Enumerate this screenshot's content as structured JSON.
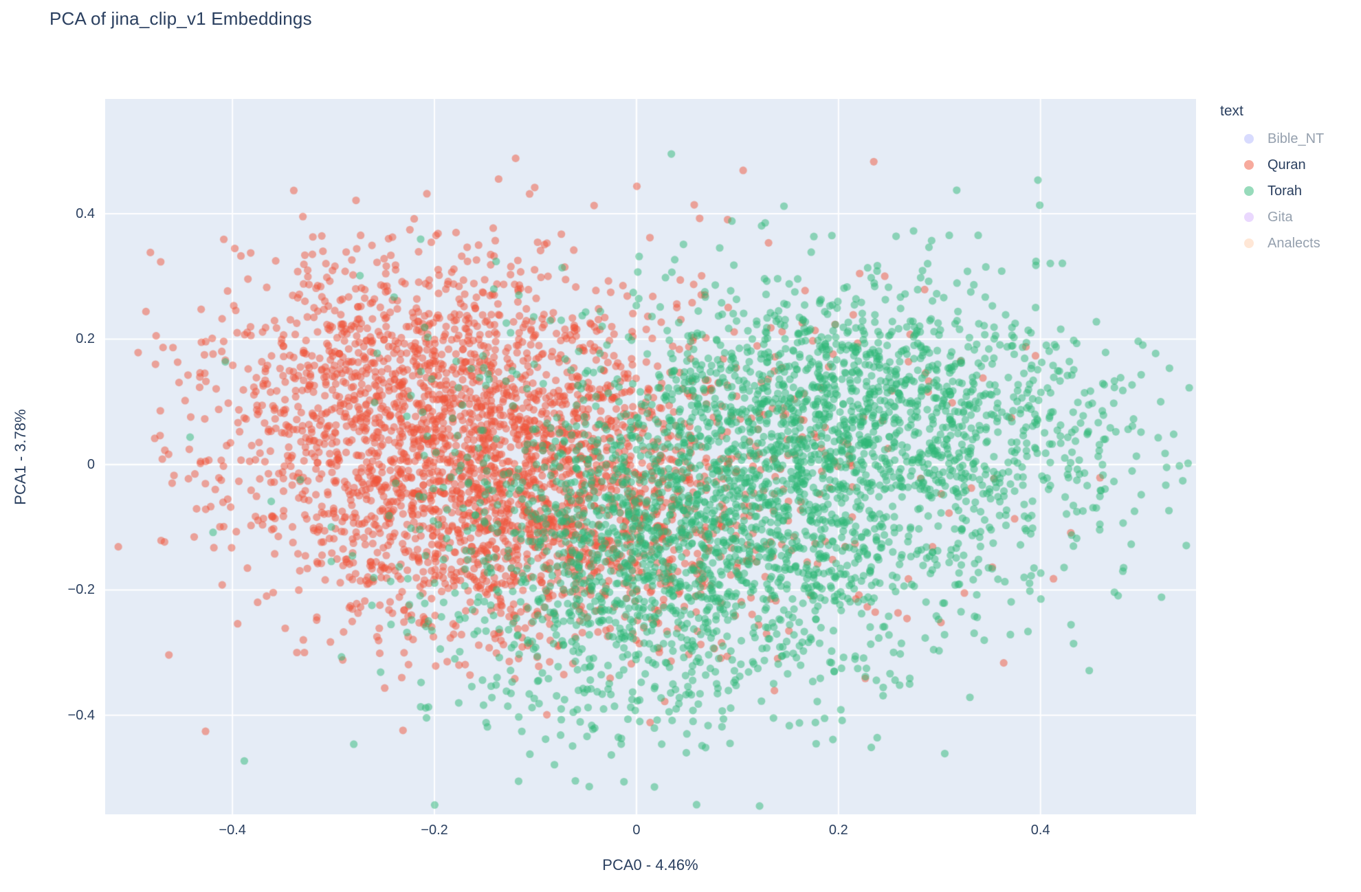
{
  "title": "PCA of jina_clip_v1 Embeddings",
  "chart_data": {
    "type": "scatter",
    "title": "PCA of jina_clip_v1 Embeddings",
    "xlabel": "PCA0 - 4.46%",
    "ylabel": "PCA1 - 3.78%",
    "xlim": [
      -0.526,
      0.554
    ],
    "ylim": [
      -0.558,
      0.583
    ],
    "xticks": [
      -0.4,
      -0.2,
      0,
      0.2,
      0.4
    ],
    "yticks": [
      -0.4,
      -0.2,
      0,
      0.2,
      0.4
    ],
    "grid": true,
    "plot_bg": "#e5ecf6",
    "grid_color": "#ffffff",
    "text_color": "#2a3f5f",
    "dim_text_color": "#95a0ae",
    "marker": {
      "radius": 5.6,
      "opacity": 0.5
    },
    "legend": {
      "title": "text",
      "position": "right"
    },
    "sampling_note": "Each visible series is a dense cloud of ~3000+ semi-transparent points; clouds are encoded as gaussian mixture clusters (cx,cy = center in data units, sx,sy = std dev, n = point count) and sampled deterministically (seed 42).",
    "series": [
      {
        "label": "Bible_NT",
        "color": "#636efa",
        "visible": false,
        "n_points": 0,
        "clusters": []
      },
      {
        "label": "Quran",
        "color": "#ef553b",
        "visible": true,
        "n_points": 3200,
        "clusters": [
          {
            "n": 1250,
            "cx": -0.22,
            "cy": 0.11,
            "sx": 0.105,
            "sy": 0.115
          },
          {
            "n": 1350,
            "cx": -0.11,
            "cy": -0.08,
            "sx": 0.115,
            "sy": 0.1
          },
          {
            "n": 600,
            "cx": -0.07,
            "cy": 0.03,
            "sx": 0.19,
            "sy": 0.17
          }
        ]
      },
      {
        "label": "Torah",
        "color": "#2fb878",
        "visible": true,
        "n_points": 3400,
        "clusters": [
          {
            "n": 1350,
            "cx": 0.22,
            "cy": 0.08,
            "sx": 0.125,
            "sy": 0.1
          },
          {
            "n": 1250,
            "cx": 0.05,
            "cy": -0.13,
            "sx": 0.12,
            "sy": 0.11
          },
          {
            "n": 600,
            "cx": 0.15,
            "cy": -0.03,
            "sx": 0.2,
            "sy": 0.17
          },
          {
            "n": 200,
            "cx": -0.01,
            "cy": -0.33,
            "sx": 0.1,
            "sy": 0.08
          }
        ]
      },
      {
        "label": "Gita",
        "color": "#ab63fa",
        "visible": false,
        "n_points": 0,
        "clusters": []
      },
      {
        "label": "Analects",
        "color": "#ffa15a",
        "visible": false,
        "n_points": 0,
        "clusters": []
      }
    ]
  }
}
